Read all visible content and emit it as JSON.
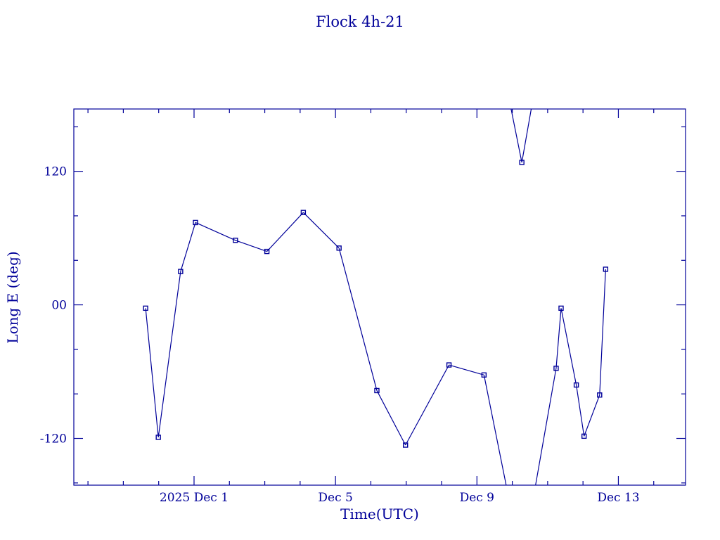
{
  "page": {
    "background": "#ffffff"
  },
  "chart_data": {
    "type": "line",
    "title": "Flock 4h-21",
    "xlabel": "Time(UTC)",
    "ylabel": "Long E (deg)",
    "color": "#000099",
    "marker": "open-square",
    "legend": "none",
    "grid": false,
    "wrap_degrees": 360,
    "x_axis": {
      "unit": "days relative to 2025 Dec 1 00:00 UTC",
      "range": [
        -3.4,
        13.9
      ],
      "minor_tick_interval_days": 1,
      "major_ticks": [
        {
          "t": 0,
          "label": "2025 Dec 1"
        },
        {
          "t": 4,
          "label": "Dec 5"
        },
        {
          "t": 8,
          "label": "Dec 9"
        },
        {
          "t": 12,
          "label": "Dec 13"
        }
      ]
    },
    "y_axis": {
      "unit": "deg",
      "range": [
        -162,
        176
      ],
      "minor_tick_interval": 40,
      "major_ticks": [
        {
          "v": 120,
          "label": "120"
        },
        {
          "v": 0,
          "label": "00"
        },
        {
          "v": -120,
          "label": "-120"
        }
      ]
    },
    "points": [
      {
        "t": -1.37,
        "longitude": -3
      },
      {
        "t": -1.01,
        "longitude": -119
      },
      {
        "t": -0.38,
        "longitude": 30
      },
      {
        "t": 0.04,
        "longitude": 74
      },
      {
        "t": 1.17,
        "longitude": 58
      },
      {
        "t": 2.06,
        "longitude": 48
      },
      {
        "t": 3.09,
        "longitude": 83
      },
      {
        "t": 4.1,
        "longitude": 51
      },
      {
        "t": 5.17,
        "longitude": -77
      },
      {
        "t": 5.98,
        "longitude": -126
      },
      {
        "t": 7.21,
        "longitude": -54
      },
      {
        "t": 8.2,
        "longitude": -63
      },
      {
        "t": 9.27,
        "longitude": 128
      },
      {
        "t": 10.24,
        "longitude": -57
      },
      {
        "t": 10.38,
        "longitude": -3
      },
      {
        "t": 10.81,
        "longitude": -72
      },
      {
        "t": 11.03,
        "longitude": -118
      },
      {
        "t": 11.47,
        "longitude": -81
      },
      {
        "t": 11.64,
        "longitude": 32
      }
    ]
  }
}
